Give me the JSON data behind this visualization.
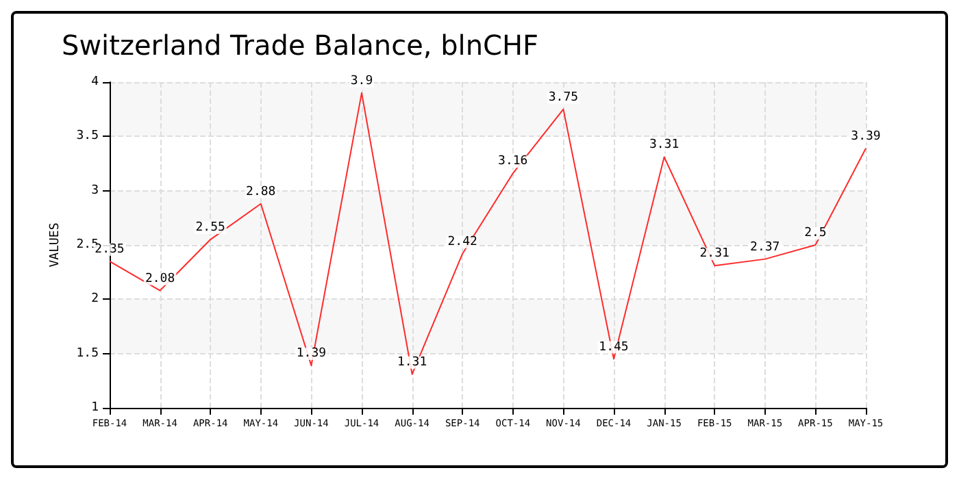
{
  "chart_data": {
    "type": "line",
    "title": "Switzerland Trade Balance, blnCHF",
    "ylabel": "VALUES",
    "categories": [
      "FEB-14",
      "MAR-14",
      "APR-14",
      "MAY-14",
      "JUN-14",
      "JUL-14",
      "AUG-14",
      "SEP-14",
      "OCT-14",
      "NOV-14",
      "DEC-14",
      "JAN-15",
      "FEB-15",
      "MAR-15",
      "APR-15",
      "MAY-15"
    ],
    "series": [
      {
        "color": "#ff2a2a",
        "values": [
          2.35,
          2.08,
          2.55,
          2.88,
          1.39,
          3.9,
          1.31,
          2.42,
          3.16,
          3.75,
          1.45,
          3.31,
          2.31,
          2.37,
          2.5,
          3.39
        ]
      }
    ],
    "ylim": [
      1,
      4
    ],
    "yticks": [
      1,
      1.5,
      2,
      2.5,
      3,
      3.5,
      4
    ],
    "grid": true,
    "data_labels": true,
    "marker": "none",
    "line_style": "solid"
  }
}
